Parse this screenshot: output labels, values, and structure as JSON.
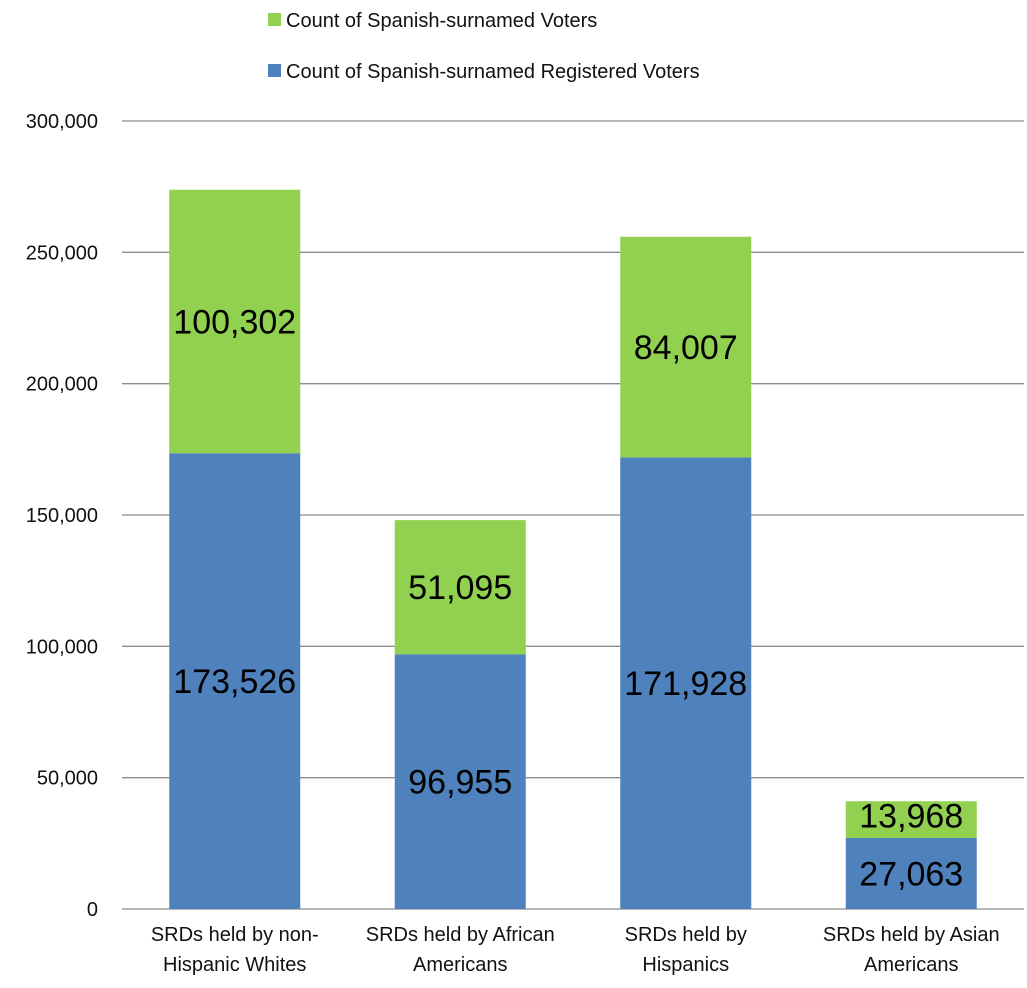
{
  "chart_data": {
    "type": "bar",
    "stacked": true,
    "categories": [
      [
        "SRDs held by non-",
        "Hispanic Whites"
      ],
      [
        "SRDs held by African",
        "Americans"
      ],
      [
        "SRDs held by",
        "Hispanics"
      ],
      [
        "SRDs held by Asian",
        "Americans"
      ]
    ],
    "series": [
      {
        "name": "Count of Spanish-surnamed Registered Voters",
        "color": "#4f81bd",
        "values": [
          173526,
          96955,
          171928,
          27063
        ],
        "labels": [
          "173,526",
          "96,955",
          "171,928",
          "27,063"
        ]
      },
      {
        "name": "Count of Spanish-surnamed Voters",
        "color": "#92d050",
        "values": [
          100302,
          51095,
          84007,
          13968
        ],
        "labels": [
          "100,302",
          "51,095",
          "84,007",
          "13,968"
        ]
      }
    ],
    "legend": {
      "placement": "top",
      "order": [
        "Count of Spanish-surnamed Voters",
        "Count of Spanish-surnamed Registered Voters"
      ]
    },
    "ylim": [
      0,
      300000
    ],
    "yticks": [
      0,
      50000,
      100000,
      150000,
      200000,
      250000,
      300000
    ],
    "ytick_labels": [
      "0",
      "50,000",
      "100,000",
      "150,000",
      "200,000",
      "250,000",
      "300,000"
    ],
    "grid": true,
    "title": "",
    "xlabel": "",
    "ylabel": ""
  }
}
